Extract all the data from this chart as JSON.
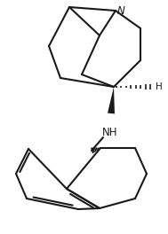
{
  "bg_color": "#ffffff",
  "line_color": "#1a1a1a",
  "figsize": [
    1.89,
    2.64
  ],
  "dpi": 100,
  "N_label": "N",
  "NH_label": "NH",
  "H_label": "H"
}
